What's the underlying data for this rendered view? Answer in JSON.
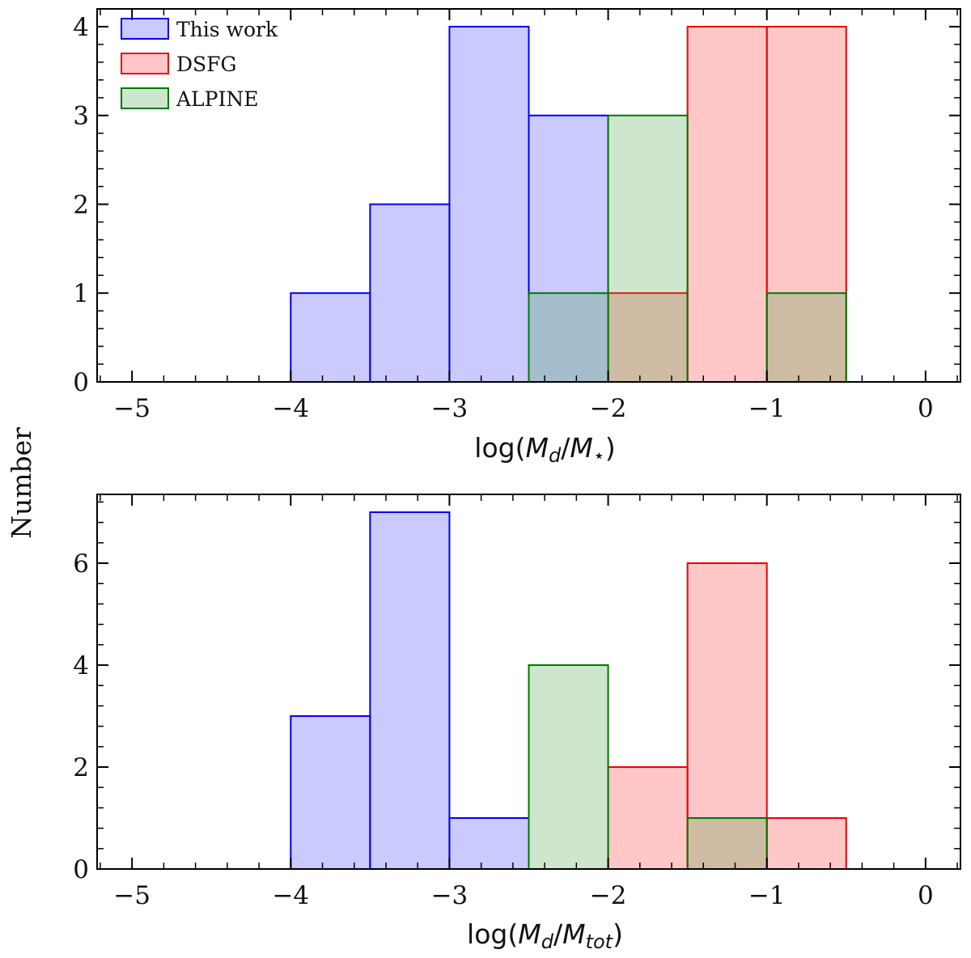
{
  "figure": {
    "shared_ylabel": "Number",
    "styles": {
      "This work": {
        "fill": "rgba(102,102,255,0.35)",
        "stroke": "#0000ee"
      },
      "DSFG": {
        "fill": "rgba(255,80,80,0.32)",
        "stroke": "#ee0000"
      },
      "ALPINE": {
        "fill": "rgba(60,160,60,0.26)",
        "stroke": "#007700"
      }
    }
  },
  "chart_data": [
    {
      "type": "bar",
      "title": "",
      "xlabel_prefix": "log(",
      "xlabel_math": "M",
      "xlabel_sub": "d",
      "xlabel_slash": "/",
      "xlabel_math2": "M",
      "xlabel_sub2": "⋆",
      "xlabel_suffix": ")",
      "ylabel": "Number",
      "xlim": [
        -5.22,
        0.22
      ],
      "ylim": [
        0,
        4.2
      ],
      "xticks": [
        -5,
        -4,
        -3,
        -2,
        -1,
        0
      ],
      "xtick_labels": [
        "−5",
        "−4",
        "−3",
        "−2",
        "−1",
        "0"
      ],
      "yticks": [
        0,
        1,
        2,
        3,
        4
      ],
      "ytick_labels": [
        "0",
        "1",
        "2",
        "3",
        "4"
      ],
      "legend": {
        "location": "upper-left",
        "entries": [
          "This work",
          "DSFG",
          "ALPINE"
        ]
      },
      "bin_edges": [
        -4.0,
        -3.5,
        -3.0,
        -2.5,
        -2.0,
        -1.5,
        -1.0,
        -0.5
      ],
      "series": [
        {
          "name": "This work",
          "values": [
            1,
            2,
            4,
            3,
            0,
            0,
            0
          ]
        },
        {
          "name": "DSFG",
          "values": [
            0,
            0,
            0,
            0,
            1,
            4,
            4
          ]
        },
        {
          "name": "ALPINE",
          "values": [
            0,
            0,
            0,
            1,
            3,
            0,
            1
          ]
        }
      ]
    },
    {
      "type": "bar",
      "title": "",
      "xlabel_prefix": "log(",
      "xlabel_math": "M",
      "xlabel_sub": "d",
      "xlabel_slash": "/",
      "xlabel_math2": "M",
      "xlabel_sub2": "tot",
      "xlabel_suffix": ")",
      "ylabel": "Number",
      "xlim": [
        -5.22,
        0.22
      ],
      "ylim": [
        0,
        7.35
      ],
      "xticks": [
        -5,
        -4,
        -3,
        -2,
        -1,
        0
      ],
      "xtick_labels": [
        "−5",
        "−4",
        "−3",
        "−2",
        "−1",
        "0"
      ],
      "yticks": [
        0,
        2,
        4,
        6
      ],
      "ytick_labels": [
        "0",
        "2",
        "4",
        "6"
      ],
      "legend": null,
      "bin_edges": [
        -4.0,
        -3.5,
        -3.0,
        -2.5,
        -2.0,
        -1.5,
        -1.0,
        -0.5
      ],
      "series": [
        {
          "name": "This work",
          "values": [
            3,
            7,
            1,
            0,
            0,
            0,
            0
          ]
        },
        {
          "name": "DSFG",
          "values": [
            0,
            0,
            0,
            0,
            2,
            6,
            1
          ]
        },
        {
          "name": "ALPINE",
          "values": [
            0,
            0,
            0,
            4,
            0,
            1,
            0
          ]
        }
      ]
    }
  ]
}
